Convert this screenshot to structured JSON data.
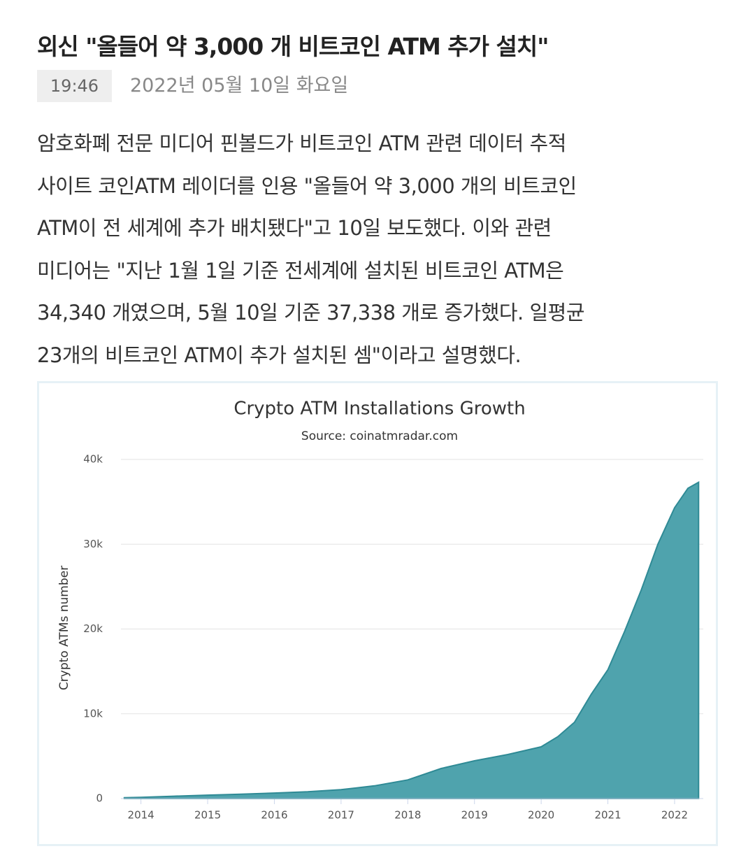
{
  "header": {
    "title": "외신 \"올들어 약 3,000 개 비트코인 ATM 추가 설치\"",
    "time": "19:46",
    "date": "2022년 05월 10일 화요일"
  },
  "body": {
    "lines": [
      "암호화폐 전문 미디어 핀볼드가 비트코인 ATM 관련 데이터 추적",
      "사이트 코인ATM 레이더를 인용 \"올들어 약 3,000 개의 비트코인",
      "ATM이 전 세계에 추가 배치됐다\"고 10일 보도했다. 이와 관련",
      "미디어는 \"지난 1월 1일 기준 전세계에 설치된 비트코인 ATM은",
      "34,340 개였으며, 5월 10일 기준 37,338 개로 증가했다. 일평균",
      "23개의 비트코인 ATM이 추가 설치된 셈\"이라고 설명했다."
    ]
  },
  "chart_data": {
    "type": "area",
    "title": "Crypto ATM Installations Growth",
    "subtitle": "Source: coinatmradar.com",
    "y_label": "Crypto ATMs number",
    "x": [
      2013.75,
      2014,
      2014.5,
      2015,
      2015.5,
      2016,
      2016.5,
      2017,
      2017.5,
      2018,
      2018.5,
      2019,
      2019.5,
      2020,
      2020.25,
      2020.5,
      2020.75,
      2021,
      2021.25,
      2021.5,
      2021.75,
      2022,
      2022.2,
      2022.36
    ],
    "values": [
      100,
      150,
      280,
      400,
      520,
      650,
      800,
      1050,
      1500,
      2200,
      3550,
      4450,
      5200,
      6100,
      7300,
      9000,
      12300,
      15200,
      19700,
      24600,
      30000,
      34300,
      36600,
      37300
    ],
    "color": "#4fa3ad",
    "xlim": [
      2013.7,
      2022.43
    ],
    "ylim": [
      0,
      40000
    ],
    "xticks": [
      2014,
      2015,
      2016,
      2017,
      2018,
      2019,
      2020,
      2021,
      2022
    ],
    "yticks": [
      0,
      {
        "value": 10000,
        "label": "10k"
      },
      {
        "value": 20000,
        "label": "20k"
      },
      {
        "value": 30000,
        "label": "30k"
      },
      {
        "value": 40000,
        "label": "40k"
      }
    ],
    "grid": true
  }
}
